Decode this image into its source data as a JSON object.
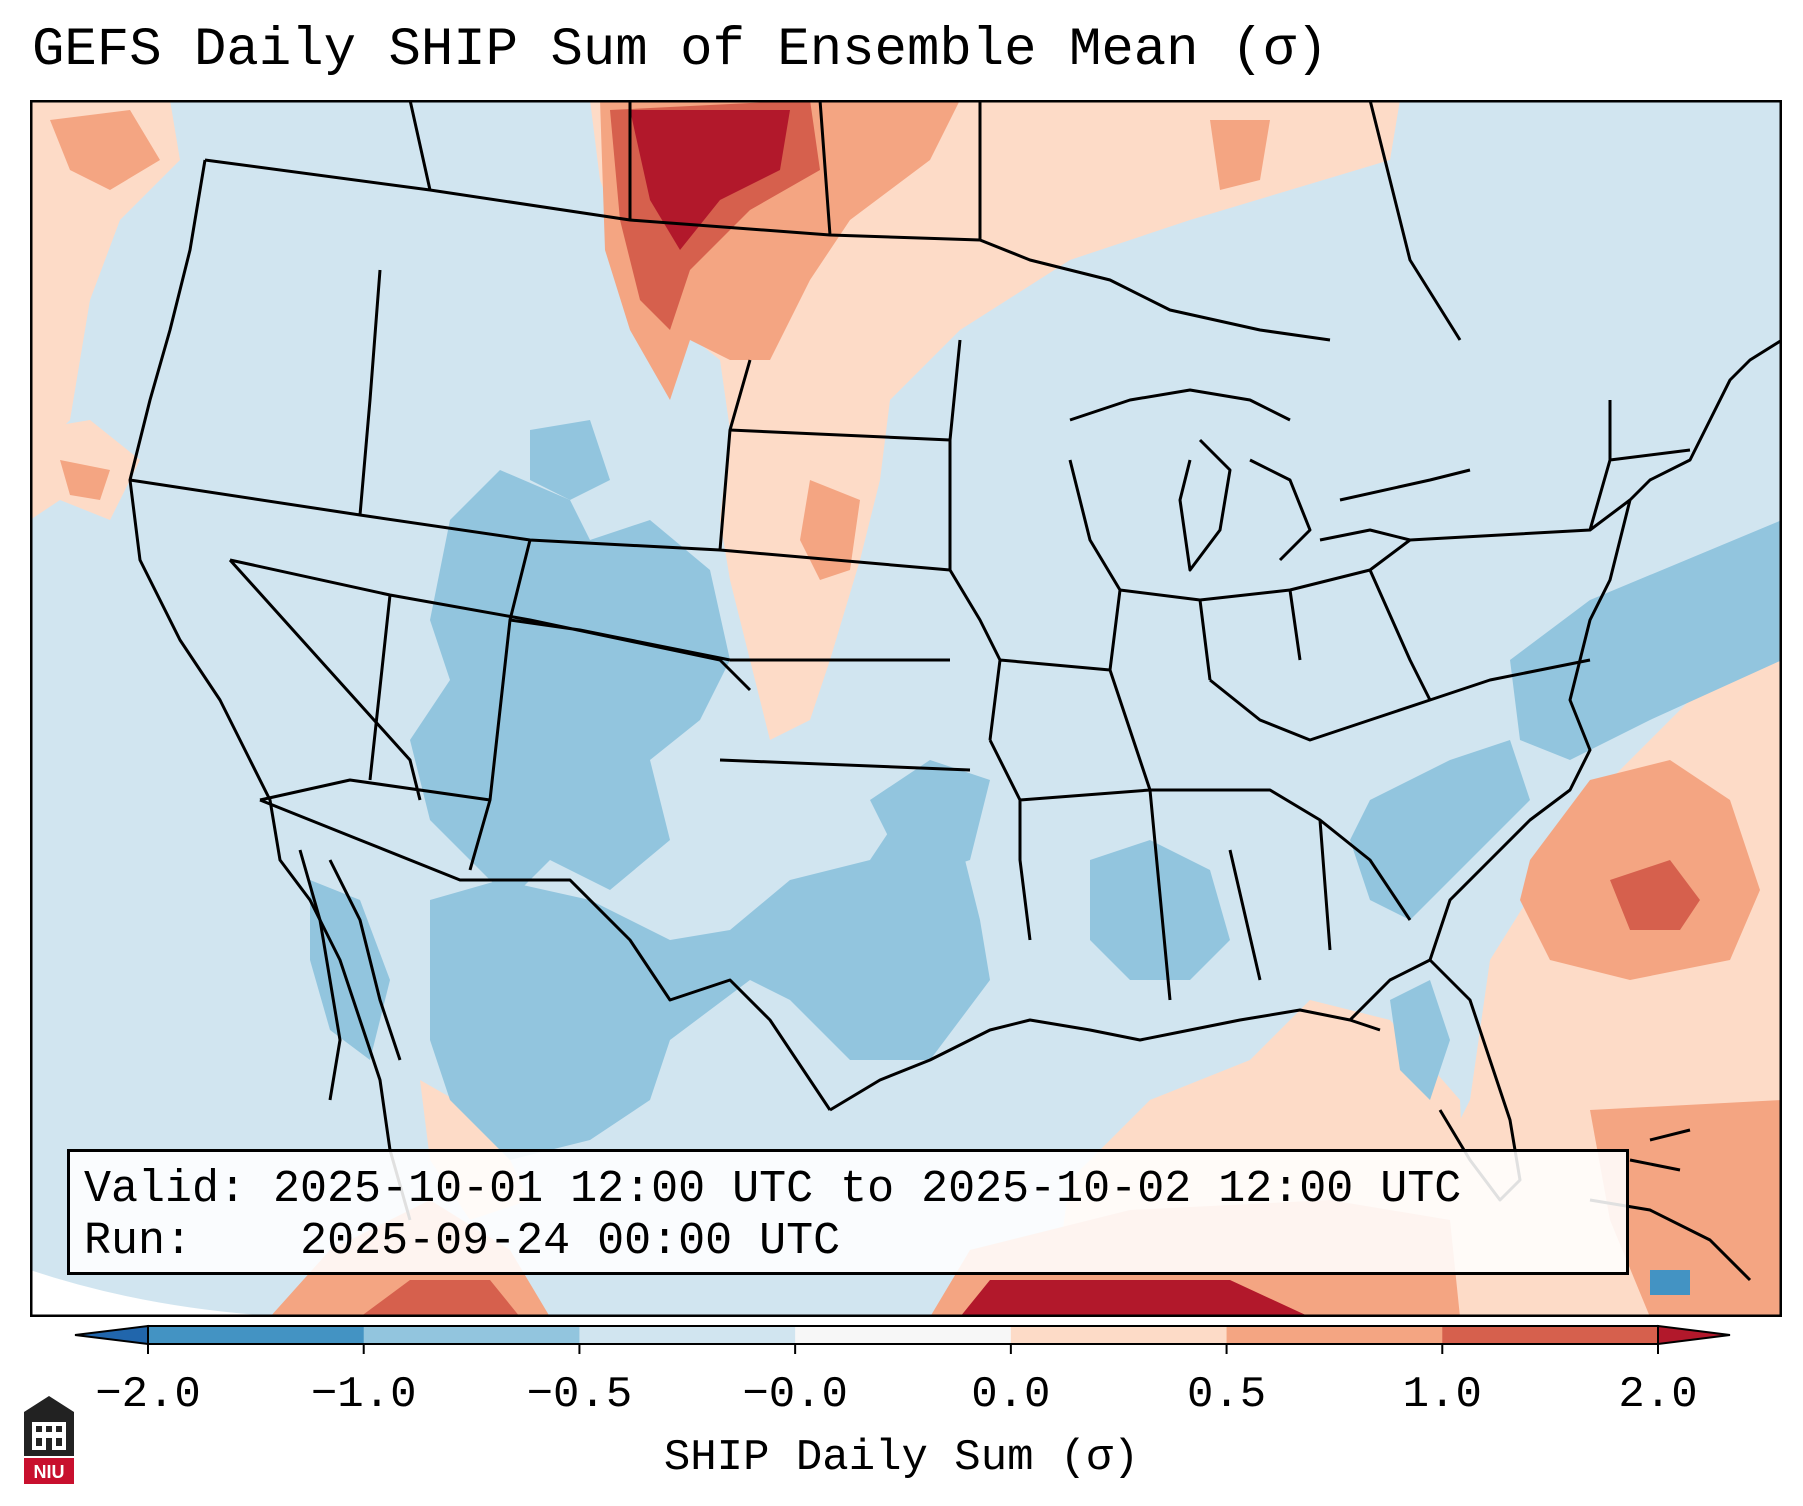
{
  "title": "GEFS Daily SHIP Sum of Ensemble Mean (σ)",
  "info": {
    "valid_label": "Valid:",
    "valid_value": "2025-10-01 12:00 UTC to 2025-10-02 12:00 UTC",
    "run_label": "Run:",
    "run_value": "2025-09-24 00:00 UTC"
  },
  "colorbar": {
    "label": "SHIP Daily Sum (σ)",
    "tick_labels": [
      "−2.0",
      "−1.0",
      "−0.5",
      "−0.0",
      "0.0",
      "0.5",
      "1.0",
      "2.0"
    ],
    "bins": [
      {
        "from": -2.0,
        "to": -1.0,
        "color": "#4393c3"
      },
      {
        "from": -1.0,
        "to": -0.5,
        "color": "#92c5de"
      },
      {
        "from": -0.5,
        "to": -0.0,
        "color": "#d1e5f0"
      },
      {
        "from": -0.0,
        "to": 0.0,
        "color": "#f7f7f7"
      },
      {
        "from": 0.0,
        "to": 0.5,
        "color": "#fddbc7"
      },
      {
        "from": 0.5,
        "to": 1.0,
        "color": "#f4a582"
      },
      {
        "from": 1.0,
        "to": 2.0,
        "color": "#d6604d"
      }
    ],
    "extend_low_color": "#2166ac",
    "extend_high_color": "#b2182b"
  },
  "logo": {
    "text": "NIU",
    "color": "#c8102e"
  },
  "colors": {
    "background_field": "#d1e5f0",
    "weak_negative": "#92c5de",
    "strong_negative": "#4393c3",
    "weak_positive": "#fddbc7",
    "moderate_positive": "#f4a582",
    "strong_positive": "#d6604d",
    "extreme_positive": "#b2182b",
    "boundaries": "#000000"
  }
}
